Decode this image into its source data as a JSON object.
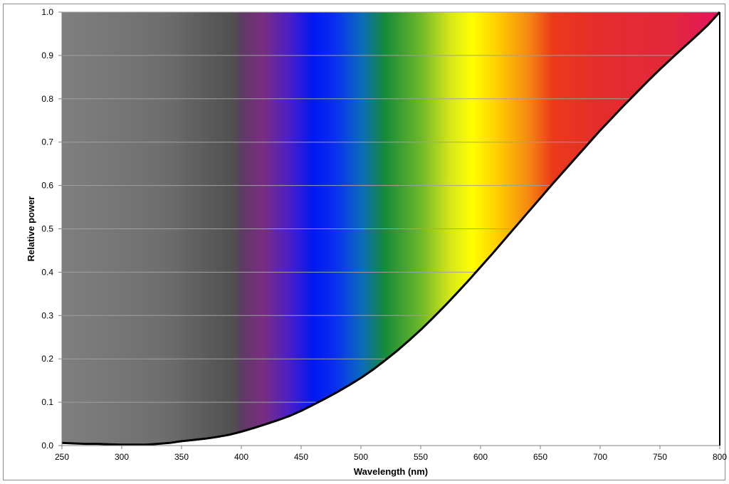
{
  "chart_data": {
    "type": "area",
    "title": "",
    "xlabel": "Wavelength (nm)",
    "ylabel": "Relative power",
    "xlim": [
      250,
      800
    ],
    "ylim": [
      0,
      1.0
    ],
    "grid": true,
    "legend": "none",
    "x_ticks": [
      "250",
      "300",
      "350",
      "400",
      "450",
      "500",
      "550",
      "600",
      "650",
      "700",
      "750",
      "800"
    ],
    "y_ticks": [
      "0.0",
      "0.1",
      "0.2",
      "0.3",
      "0.4",
      "0.5",
      "0.6",
      "0.7",
      "0.8",
      "0.9",
      "1.0"
    ],
    "series": [
      {
        "x": [
          250,
          260,
          270,
          280,
          290,
          300,
          310,
          320,
          330,
          340,
          350,
          360,
          370,
          380,
          390,
          400,
          410,
          420,
          430,
          440,
          450,
          460,
          470,
          480,
          490,
          500,
          510,
          520,
          530,
          540,
          550,
          560,
          570,
          580,
          590,
          600,
          610,
          620,
          630,
          640,
          650,
          660,
          670,
          680,
          690,
          700,
          710,
          720,
          730,
          740,
          750,
          760,
          770,
          780,
          790,
          800
        ],
        "values": [
          0.006,
          0.005,
          0.004,
          0.004,
          0.003,
          0.002,
          0.002,
          0.002,
          0.004,
          0.006,
          0.01,
          0.013,
          0.016,
          0.02,
          0.025,
          0.032,
          0.04,
          0.049,
          0.058,
          0.068,
          0.08,
          0.094,
          0.108,
          0.123,
          0.139,
          0.156,
          0.175,
          0.196,
          0.218,
          0.242,
          0.267,
          0.294,
          0.322,
          0.351,
          0.381,
          0.412,
          0.443,
          0.475,
          0.507,
          0.539,
          0.571,
          0.603,
          0.634,
          0.665,
          0.696,
          0.727,
          0.756,
          0.785,
          0.813,
          0.841,
          0.868,
          0.894,
          0.919,
          0.944,
          0.97,
          1.0
        ]
      }
    ],
    "colors": {
      "line": "#000000",
      "gridline": "#a0a0a0",
      "fill_under_curve": "#ffffff",
      "spectrum_stops": [
        {
          "nm": 250,
          "color": "#7f7f7f"
        },
        {
          "nm": 335,
          "color": "#6e6e6e"
        },
        {
          "nm": 395,
          "color": "#4f4f4f"
        },
        {
          "nm": 400,
          "color": "#5d3b64"
        },
        {
          "nm": 418,
          "color": "#7a2d80"
        },
        {
          "nm": 440,
          "color": "#4a1fc8"
        },
        {
          "nm": 460,
          "color": "#0018f0"
        },
        {
          "nm": 478,
          "color": "#0a2ef0"
        },
        {
          "nm": 500,
          "color": "#0a6abe"
        },
        {
          "nm": 520,
          "color": "#168a3a"
        },
        {
          "nm": 550,
          "color": "#6db828"
        },
        {
          "nm": 575,
          "color": "#d8e818"
        },
        {
          "nm": 593,
          "color": "#ffff00"
        },
        {
          "nm": 615,
          "color": "#ffcc00"
        },
        {
          "nm": 640,
          "color": "#f58a10"
        },
        {
          "nm": 660,
          "color": "#ea3a1a"
        },
        {
          "nm": 700,
          "color": "#e42c2c"
        },
        {
          "nm": 760,
          "color": "#e3283c"
        },
        {
          "nm": 800,
          "color": "#e3145e"
        }
      ]
    }
  }
}
